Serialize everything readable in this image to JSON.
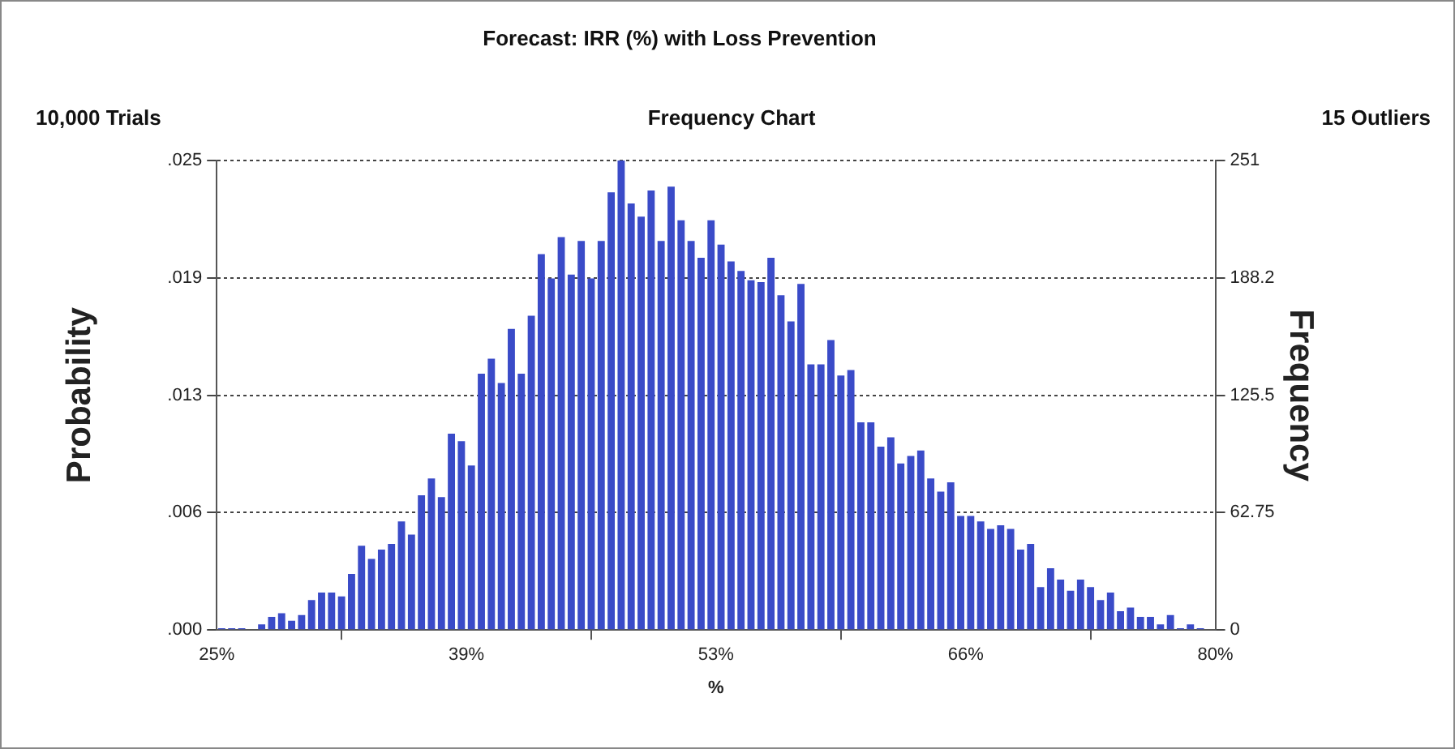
{
  "chart_data": {
    "type": "histogram",
    "title": "Forecast: IRR (%) with Loss Prevention",
    "subtitle": "Frequency Chart",
    "annotations": [
      "10,000 Trials",
      "15 Outliers"
    ],
    "xlabel": "%",
    "ylabel": "Probability",
    "y2label": "Frequency",
    "bins": [
      25,
      25.55,
      26.1,
      26.65,
      27.2,
      27.75,
      28.3,
      28.85,
      29.4,
      29.95,
      30.5,
      31.05,
      31.6,
      32.15,
      32.7,
      33.25,
      33.8,
      34.35,
      34.9,
      35.45,
      36,
      36.55,
      37.1,
      37.65,
      38.2,
      38.75,
      39.3,
      39.85,
      40.4,
      40.95,
      41.5,
      42.05,
      42.6,
      43.15,
      43.7,
      44.25,
      44.8,
      45.35,
      45.9,
      46.45,
      47,
      47.55,
      48.1,
      48.65,
      49.2,
      49.75,
      50.3,
      50.85,
      51.4,
      51.95,
      52.5,
      53.05,
      53.6,
      54.15,
      54.7,
      55.25,
      55.8,
      56.35,
      56.9,
      57.45,
      58,
      58.55,
      59.1,
      59.65,
      60.2,
      60.75,
      61.3,
      61.85,
      62.4,
      62.95,
      63.5,
      64.05,
      64.6,
      65.15,
      65.7,
      66.25,
      66.8,
      67.35,
      67.9,
      68.45,
      69,
      69.55,
      70.1,
      70.65,
      71.2,
      71.75,
      72.3,
      72.85,
      73.4,
      73.95,
      74.5,
      75.05,
      75.6,
      76.15,
      76.7,
      77.25,
      77.8,
      78.35,
      78.9,
      79.45,
      80
    ],
    "series": [
      {
        "color": "#3a4bc8",
        "axis": "y2",
        "values": [
          1,
          1,
          1,
          0,
          3,
          7,
          9,
          5,
          8,
          16,
          20,
          20,
          18,
          30,
          45,
          38,
          43,
          46,
          58,
          51,
          72,
          81,
          71,
          105,
          101,
          88,
          137,
          145,
          132,
          161,
          137,
          168,
          201,
          188,
          210,
          190,
          208,
          188,
          208,
          234,
          251,
          228,
          221,
          235,
          208,
          237,
          219,
          208,
          199,
          219,
          206,
          197,
          192,
          187,
          186,
          199,
          179,
          165,
          185,
          142,
          142,
          155,
          136,
          139,
          111,
          111,
          98,
          103,
          89,
          93,
          96,
          81,
          74,
          79,
          61,
          61,
          58,
          54,
          56,
          54,
          43,
          46,
          23,
          33,
          27,
          21,
          27,
          23,
          16,
          20,
          10,
          12,
          7,
          7,
          3,
          8,
          1,
          3,
          1,
          0
        ]
      }
    ],
    "xlim": [
      25,
      80
    ],
    "xticks": [
      {
        "value": 25,
        "label": "25%"
      },
      {
        "value": 38.75,
        "label": "39%"
      },
      {
        "value": 52.5,
        "label": "53%"
      },
      {
        "value": 66.25,
        "label": "66%"
      },
      {
        "value": 80,
        "label": "80%"
      }
    ],
    "ylim": [
      0,
      0.0251
    ],
    "yticks": [
      {
        "value": 0,
        "label": ".000"
      },
      {
        "value": 0.006275,
        "label": ".006"
      },
      {
        "value": 0.01255,
        "label": ".013"
      },
      {
        "value": 0.018825,
        "label": ".019"
      },
      {
        "value": 0.0251,
        "label": ".025"
      }
    ],
    "y2lim": [
      0,
      251
    ],
    "y2ticks": [
      0,
      62.75,
      125.5,
      188.2,
      251
    ],
    "grid": "y",
    "legend": false
  }
}
